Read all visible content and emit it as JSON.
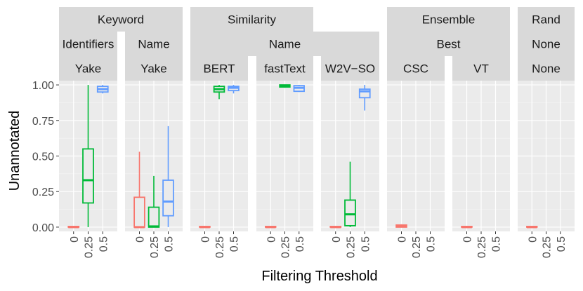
{
  "chart_data": {
    "type": "boxplot",
    "title": "",
    "xlabel": "Filtering Threshold",
    "ylabel": "Unannotated",
    "ylim": [
      -0.03,
      1.03
    ],
    "yticks": [
      0,
      0.25,
      0.5,
      0.75,
      1
    ],
    "ytick_labels": [
      "0.00",
      "0.25",
      "0.50",
      "0.75",
      "1.00"
    ],
    "categories": [
      "0",
      "0.25",
      "0.5"
    ],
    "series_colors": {
      "0": "#F8766D",
      "0.25": "#00BA38",
      "0.5": "#619CFF"
    },
    "strip_groups": {
      "level1": [
        {
          "label": "Keyword",
          "panels": [
            0,
            1
          ]
        },
        {
          "label": "Similarity",
          "panels": [
            2,
            3,
            4
          ]
        },
        {
          "label": "Ensemble",
          "panels": [
            5,
            6
          ]
        },
        {
          "label": "Rand",
          "panels": [
            7,
            7
          ]
        }
      ],
      "level2": [
        {
          "label": "Identifiers",
          "panels": [
            0,
            0
          ]
        },
        {
          "label": "Name",
          "panels": [
            1,
            1
          ]
        },
        {
          "label": "Name",
          "panels": [
            2,
            4
          ]
        },
        {
          "label": "Best",
          "panels": [
            5,
            6
          ]
        },
        {
          "label": "None",
          "panels": [
            7,
            7
          ]
        }
      ]
    },
    "panels": [
      {
        "label": "Yake",
        "boxes": [
          {
            "x": "0",
            "min": 0,
            "q1": 0,
            "median": 0,
            "q3": 0.005,
            "max": 0.005
          },
          {
            "x": "0.25",
            "min": 0,
            "q1": 0.17,
            "median": 0.33,
            "q3": 0.55,
            "max": 1.0
          },
          {
            "x": "0.5",
            "min": 0.94,
            "q1": 0.95,
            "median": 0.97,
            "q3": 0.99,
            "max": 1.0
          }
        ]
      },
      {
        "label": "Yake",
        "boxes": [
          {
            "x": "0",
            "min": 0,
            "q1": 0,
            "median": 0,
            "q3": 0.21,
            "max": 0.53
          },
          {
            "x": "0.25",
            "min": 0,
            "q1": 0,
            "median": 0.005,
            "q3": 0.14,
            "max": 0.36
          },
          {
            "x": "0.5",
            "min": 0,
            "q1": 0.08,
            "median": 0.18,
            "q3": 0.33,
            "max": 0.71
          }
        ]
      },
      {
        "label": "BERT",
        "boxes": [
          {
            "x": "0",
            "min": 0,
            "q1": 0,
            "median": 0,
            "q3": 0.005,
            "max": 0.005
          },
          {
            "x": "0.25",
            "min": 0.9,
            "q1": 0.95,
            "median": 0.97,
            "q3": 0.99,
            "max": 1.0
          },
          {
            "x": "0.5",
            "min": 0.94,
            "q1": 0.96,
            "median": 0.98,
            "q3": 0.99,
            "max": 1.0
          }
        ]
      },
      {
        "label": "fastText",
        "boxes": [
          {
            "x": "0",
            "min": 0,
            "q1": 0,
            "median": 0,
            "q3": 0.005,
            "max": 0.005
          },
          {
            "x": "0.25",
            "min": 0.98,
            "q1": 0.985,
            "median": 0.99,
            "q3": 1.0,
            "max": 1.0
          },
          {
            "x": "0.5",
            "min": 0.95,
            "q1": 0.955,
            "median": 0.98,
            "q3": 0.995,
            "max": 1.0
          }
        ]
      },
      {
        "label": "W2V−SO",
        "boxes": [
          {
            "x": "0",
            "min": 0,
            "q1": 0,
            "median": 0,
            "q3": 0.005,
            "max": 0.005
          },
          {
            "x": "0.25",
            "min": 0,
            "q1": 0.01,
            "median": 0.09,
            "q3": 0.19,
            "max": 0.46
          },
          {
            "x": "0.5",
            "min": 0.82,
            "q1": 0.91,
            "median": 0.955,
            "q3": 0.97,
            "max": 1.0
          }
        ]
      },
      {
        "label": "CSC",
        "boxes": [
          {
            "x": "0",
            "min": 0,
            "q1": 0,
            "median": 0.005,
            "q3": 0.015,
            "max": 0.02
          }
        ]
      },
      {
        "label": "VT",
        "boxes": [
          {
            "x": "0",
            "min": 0,
            "q1": 0,
            "median": 0,
            "q3": 0.005,
            "max": 0.005
          }
        ]
      },
      {
        "label": "None",
        "boxes": [
          {
            "x": "0",
            "min": 0,
            "q1": 0,
            "median": 0,
            "q3": 0.005,
            "max": 0.005
          }
        ]
      }
    ]
  }
}
